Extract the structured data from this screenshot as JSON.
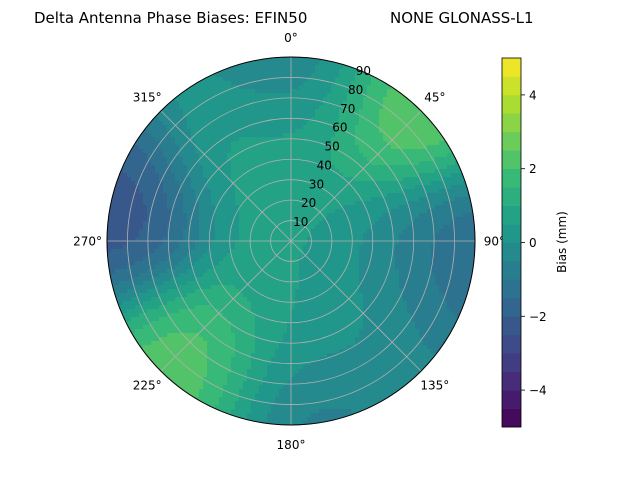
{
  "chart_data": {
    "type": "polar-contour",
    "title_left": "Delta Antenna Phase Biases: EFIN50",
    "title_right": "NONE GLONASS-L1",
    "radial_ticks": [
      "10",
      "20",
      "30",
      "40",
      "50",
      "60",
      "70",
      "80",
      "90"
    ],
    "angle_ticks": [
      "0°",
      "45°",
      "90°",
      "135°",
      "180°",
      "225°",
      "270°",
      "315°"
    ],
    "angle_values_deg": [
      0,
      45,
      90,
      135,
      180,
      225,
      270,
      315
    ],
    "radial_values": [
      10,
      20,
      30,
      40,
      50,
      60,
      70,
      80,
      90
    ],
    "colorbar": {
      "label": "Bias (mm)",
      "ticks": [
        "−4",
        "−2",
        "0",
        "2",
        "4"
      ],
      "tick_values": [
        -4,
        -2,
        0,
        2,
        4
      ],
      "levels": [
        -5,
        -4.5,
        -4,
        -3.5,
        -3,
        -2.5,
        -2,
        -1.5,
        -1,
        -0.5,
        0,
        0.5,
        1,
        1.5,
        2,
        2.5,
        3,
        3.5,
        4,
        4.5,
        5
      ],
      "colormap": "viridis"
    },
    "field_features": [
      {
        "az": 40,
        "el": 5,
        "value": 3.5
      },
      {
        "az": 220,
        "el": 10,
        "value": 3.0
      },
      {
        "az": 278,
        "el": 4,
        "value": -3.0
      },
      {
        "az": 95,
        "el": 8,
        "value": -2.0
      },
      {
        "az": 175,
        "el": 5,
        "value": -1.0
      },
      {
        "az": 5,
        "el": 3,
        "value": -1.0
      },
      {
        "az": 340,
        "el": 50,
        "value": 1.0
      },
      {
        "az": 150,
        "el": 60,
        "value": 1.0
      },
      {
        "az": 120,
        "el": 45,
        "value": -0.5
      }
    ],
    "grid": true
  }
}
